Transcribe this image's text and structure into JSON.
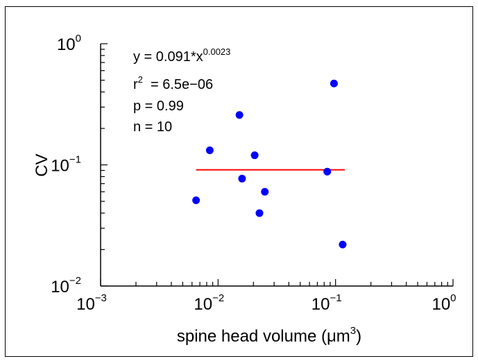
{
  "chart_data": {
    "type": "scatter",
    "xscale": "log",
    "yscale": "log",
    "xlim": [
      0.001,
      1
    ],
    "ylim": [
      0.01,
      1
    ],
    "xlabel": {
      "text": "spine head volume (μm",
      "sup": "3",
      "suffix": ")"
    },
    "ylabel": "CV",
    "x_ticks": [
      {
        "value": 0.001,
        "base": "10",
        "exp": "−3"
      },
      {
        "value": 0.01,
        "base": "10",
        "exp": "−2"
      },
      {
        "value": 0.1,
        "base": "10",
        "exp": "−1"
      },
      {
        "value": 1,
        "base": "10",
        "exp": "0"
      }
    ],
    "y_ticks": [
      {
        "value": 0.01,
        "base": "10",
        "exp": "−2"
      },
      {
        "value": 0.1,
        "base": "10",
        "exp": "−1"
      },
      {
        "value": 1,
        "base": "10",
        "exp": "0"
      }
    ],
    "series": [
      {
        "marker_color": "#0000ff",
        "points": [
          {
            "x": 0.0065,
            "y": 0.051
          },
          {
            "x": 0.0085,
            "y": 0.132
          },
          {
            "x": 0.0152,
            "y": 0.258
          },
          {
            "x": 0.016,
            "y": 0.077
          },
          {
            "x": 0.0205,
            "y": 0.12
          },
          {
            "x": 0.0225,
            "y": 0.04
          },
          {
            "x": 0.025,
            "y": 0.06
          },
          {
            "x": 0.085,
            "y": 0.088
          },
          {
            "x": 0.097,
            "y": 0.47
          },
          {
            "x": 0.115,
            "y": 0.022
          }
        ]
      }
    ],
    "fit_line": {
      "color": "#ff0000",
      "x": [
        0.0065,
        0.12
      ],
      "y": [
        0.091,
        0.091
      ]
    },
    "annotations": {
      "equation": {
        "text": "y = 0.091*x",
        "sup": "0.0023"
      },
      "r2": {
        "prefix": "r",
        "sup": "2",
        "text": "  = 6.5e−06"
      },
      "p": "p = 0.99",
      "n": "n = 10"
    },
    "grid": false,
    "legend": "none"
  }
}
